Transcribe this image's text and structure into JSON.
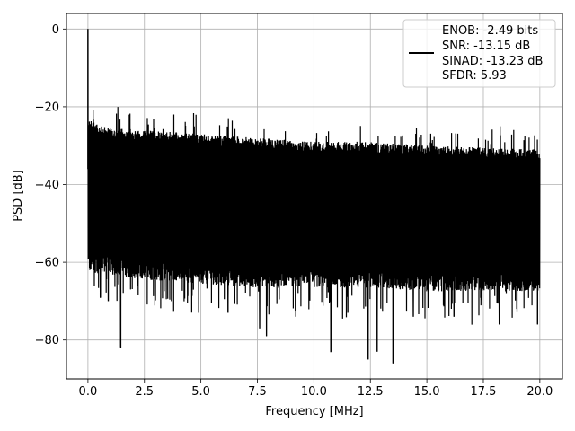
{
  "chart_data": {
    "type": "line",
    "title": "",
    "xlabel": "Frequency [MHz]",
    "ylabel": "PSD [dB]",
    "xlim": [
      -0.95,
      21.0
    ],
    "ylim": [
      -90,
      4
    ],
    "xticks": [
      0.0,
      2.5,
      5.0,
      7.5,
      10.0,
      12.5,
      15.0,
      17.5,
      20.0
    ],
    "xtick_labels": [
      "0.0",
      "2.5",
      "5.0",
      "7.5",
      "10.0",
      "12.5",
      "15.0",
      "17.5",
      "20.0"
    ],
    "yticks": [
      0,
      -20,
      -40,
      -60,
      -80
    ],
    "ytick_labels": [
      "0",
      "−20",
      "−40",
      "−60",
      "−80"
    ],
    "grid": true,
    "legend_placement": "top-right",
    "line_color": "#000000",
    "legend_lines": [
      "ENOB: -2.49 bits",
      "SNR: -13.15 dB",
      "SINAD: -13.23 dB",
      "SFDR: 5.93"
    ],
    "series": [
      {
        "style": "dense noise floor",
        "x_range": [
          0.0,
          20.0
        ],
        "dc_peak": {
          "x": 0.0,
          "y": 0
        },
        "upper_envelope": {
          "x": [
            0.0,
            0.05,
            0.5,
            2.5,
            5.0,
            7.5,
            10.0,
            12.5,
            15.0,
            17.5,
            20.0
          ],
          "y": [
            -28,
            -22,
            -25,
            -26,
            -27,
            -28,
            -29,
            -29,
            -30,
            -30.5,
            -31
          ]
        },
        "lower_envelope": {
          "x": [
            0.0,
            2.5,
            5.0,
            7.5,
            10.0,
            12.5,
            15.0,
            17.5,
            20.0
          ],
          "y": [
            -60,
            -62,
            -63,
            -64,
            -64,
            -64,
            -65,
            -65,
            -65
          ]
        },
        "deep_dips": [
          {
            "x": 0.55,
            "y": -69
          },
          {
            "x": 0.9,
            "y": -70
          },
          {
            "x": 1.45,
            "y": -82
          },
          {
            "x": 3.7,
            "y": -70
          },
          {
            "x": 4.9,
            "y": -73
          },
          {
            "x": 6.2,
            "y": -73
          },
          {
            "x": 7.6,
            "y": -77
          },
          {
            "x": 7.9,
            "y": -79
          },
          {
            "x": 9.2,
            "y": -74
          },
          {
            "x": 10.75,
            "y": -83
          },
          {
            "x": 11.5,
            "y": -73
          },
          {
            "x": 12.4,
            "y": -85
          },
          {
            "x": 12.8,
            "y": -83
          },
          {
            "x": 13.5,
            "y": -86
          },
          {
            "x": 14.4,
            "y": -74
          },
          {
            "x": 16.2,
            "y": -74
          },
          {
            "x": 18.2,
            "y": -76
          },
          {
            "x": 19.9,
            "y": -76
          }
        ]
      }
    ]
  }
}
